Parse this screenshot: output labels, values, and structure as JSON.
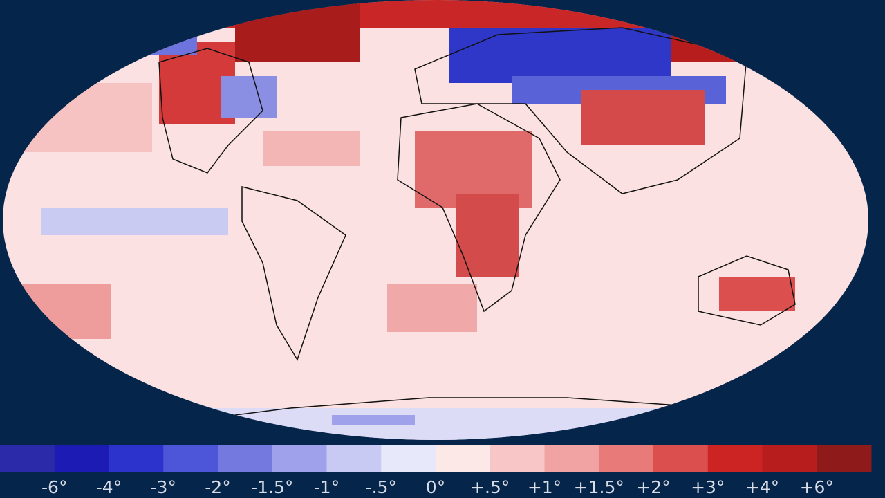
{
  "legend": {
    "colors": [
      "#2b2aa8",
      "#1c1cb4",
      "#2b33cc",
      "#4d55d9",
      "#7479e0",
      "#9fa2ea",
      "#c8caf4",
      "#e8e8fb",
      "#fde8e8",
      "#f8c6c6",
      "#f1a3a3",
      "#e87a7a",
      "#dc4f4f",
      "#cc2323",
      "#b81d1d",
      "#8e1a1a"
    ],
    "labels": [
      "-6°",
      "-4°",
      "-3°",
      "-2°",
      "-1.5°",
      "-1°",
      "-.5°",
      "0°",
      "+.5°",
      "+1°",
      "+1.5°",
      "+2°",
      "+3°",
      "+4°",
      "+6°"
    ]
  }
}
